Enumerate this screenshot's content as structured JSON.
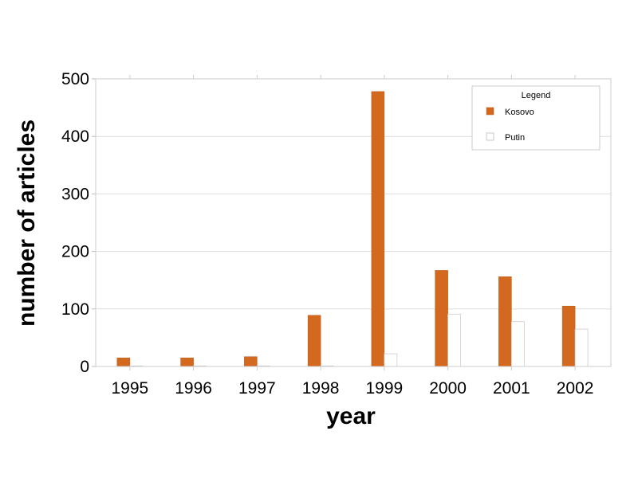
{
  "chart_data": {
    "type": "bar",
    "title": "",
    "xlabel": "year",
    "ylabel": "number of articles",
    "categories": [
      "1995",
      "1996",
      "1997",
      "1998",
      "1999",
      "2000",
      "2001",
      "2002"
    ],
    "series": [
      {
        "name": "Kosovo",
        "values": [
          15,
          15,
          17,
          89,
          478,
          167,
          156,
          105
        ],
        "color": "#d2691e"
      },
      {
        "name": "Putin",
        "values": [
          1,
          1,
          1,
          1,
          22,
          91,
          78,
          65
        ],
        "color": "#ffffff"
      }
    ],
    "ylim": [
      0,
      500
    ],
    "yticks": [
      0,
      100,
      200,
      300,
      400,
      500
    ],
    "grid": true,
    "legend": {
      "title": "Legend",
      "position": "top-right"
    }
  }
}
